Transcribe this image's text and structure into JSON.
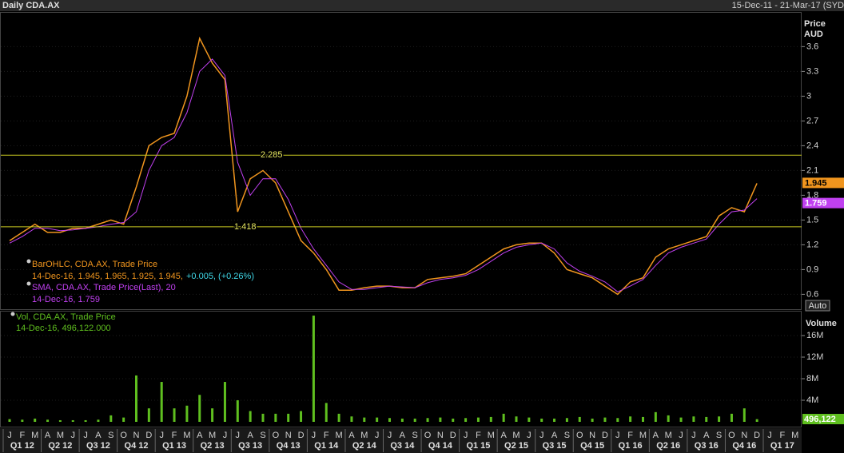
{
  "chart_data": [
    {
      "type": "line",
      "title": "Daily CDA.AX",
      "subtitle": "15-Dec-11 - 21-Mar-17 (SYD",
      "y_label": "Price AUD",
      "scale_mode": "Auto",
      "categories": [
        "J",
        "F",
        "M",
        "A",
        "M",
        "J",
        "J",
        "A",
        "S",
        "O",
        "N",
        "D",
        "J",
        "F",
        "M",
        "A",
        "M",
        "J",
        "J",
        "A",
        "S",
        "O",
        "N",
        "D",
        "J",
        "F",
        "M",
        "A",
        "M",
        "J",
        "J",
        "A",
        "S",
        "O",
        "N",
        "D",
        "J",
        "F",
        "M",
        "A",
        "M",
        "J",
        "J",
        "A",
        "S",
        "O",
        "N",
        "D",
        "J",
        "F",
        "M",
        "A",
        "M",
        "J",
        "J",
        "A",
        "S",
        "O",
        "N",
        "D",
        "J",
        "F",
        "M"
      ],
      "quarters": [
        "Q1 12",
        "Q2 12",
        "Q3 12",
        "Q4 12",
        "Q1 13",
        "Q2 13",
        "Q3 13",
        "Q4 13",
        "Q1 14",
        "Q2 14",
        "Q3 14",
        "Q4 14",
        "Q1 15",
        "Q2 15",
        "Q3 15",
        "Q4 15",
        "Q1 16",
        "Q2 16",
        "Q3 16",
        "Q4 16",
        "Q1 17"
      ],
      "series": [
        {
          "name": "BarOHLC, CDA.AX, Trade Price",
          "info": "14-Dec-16, 1.945, 1.965, 1.925, 1.945,",
          "change": "+0.005, (+0.26%)",
          "color": "#f0951e",
          "values": [
            1.25,
            1.35,
            1.45,
            1.35,
            1.35,
            1.4,
            1.4,
            1.45,
            1.5,
            1.45,
            1.9,
            2.4,
            2.5,
            2.55,
            3.0,
            3.7,
            3.4,
            3.2,
            1.6,
            2.0,
            2.1,
            1.95,
            1.6,
            1.25,
            1.1,
            0.9,
            0.65,
            0.65,
            0.68,
            0.7,
            0.7,
            0.68,
            0.68,
            0.78,
            0.8,
            0.82,
            0.85,
            0.95,
            1.05,
            1.15,
            1.2,
            1.22,
            1.22,
            1.1,
            0.9,
            0.85,
            0.8,
            0.7,
            0.6,
            0.75,
            0.8,
            1.05,
            1.15,
            1.2,
            1.25,
            1.3,
            1.55,
            1.65,
            1.6,
            1.945,
            null,
            null,
            null
          ]
        },
        {
          "name": "SMA, CDA.AX, Trade Price(Last),  20",
          "info": "14-Dec-16, 1.759",
          "color": "#c040f0",
          "values": [
            1.22,
            1.3,
            1.4,
            1.4,
            1.37,
            1.38,
            1.4,
            1.42,
            1.45,
            1.47,
            1.6,
            2.1,
            2.4,
            2.5,
            2.8,
            3.3,
            3.45,
            3.25,
            2.2,
            1.8,
            2.0,
            2.0,
            1.75,
            1.4,
            1.15,
            0.95,
            0.75,
            0.66,
            0.66,
            0.68,
            0.7,
            0.69,
            0.68,
            0.74,
            0.78,
            0.8,
            0.83,
            0.9,
            1.0,
            1.1,
            1.17,
            1.2,
            1.22,
            1.15,
            0.98,
            0.88,
            0.82,
            0.75,
            0.63,
            0.7,
            0.78,
            0.95,
            1.1,
            1.17,
            1.22,
            1.27,
            1.45,
            1.6,
            1.62,
            1.759,
            null,
            null,
            null
          ]
        }
      ],
      "levels": [
        2.285,
        1.418
      ],
      "level_color": "#c8c820",
      "ylim": [
        0.42,
        4.01
      ],
      "yticks": [
        0.6,
        0.9,
        1.2,
        1.5,
        1.8,
        2.1,
        2.4,
        2.7,
        3,
        3.3,
        3.6
      ],
      "grid": true
    },
    {
      "type": "bar",
      "y_label": "Volume",
      "last_value_label": "496,122",
      "series": [
        {
          "name": "Vol, CDA.AX, Trade Price",
          "info": "14-Dec-16, 496,122.000",
          "color": "#5fbf1f",
          "values": [
            500000,
            400000,
            600000,
            400000,
            300000,
            300000,
            300000,
            400000,
            1200000,
            800000,
            8600000,
            2500000,
            7400000,
            2500000,
            3000000,
            5000000,
            2500000,
            7400000,
            4000000,
            2000000,
            1500000,
            1500000,
            1500000,
            2000000,
            19700000,
            3500000,
            1500000,
            1000000,
            800000,
            800000,
            700000,
            600000,
            600000,
            700000,
            800000,
            600000,
            700000,
            800000,
            900000,
            1500000,
            1000000,
            800000,
            600000,
            600000,
            700000,
            900000,
            600000,
            800000,
            700000,
            1000000,
            900000,
            1800000,
            1200000,
            800000,
            1000000,
            900000,
            1000000,
            1500000,
            2500000,
            496122,
            null,
            null,
            null
          ]
        }
      ],
      "ylim": [
        0,
        20000000
      ],
      "yticks": [
        {
          "value": 4000000,
          "label": "4M"
        },
        {
          "value": 8000000,
          "label": "8M"
        },
        {
          "value": 12000000,
          "label": "12M"
        },
        {
          "value": 16000000,
          "label": "16M"
        }
      ],
      "grid": true
    }
  ]
}
